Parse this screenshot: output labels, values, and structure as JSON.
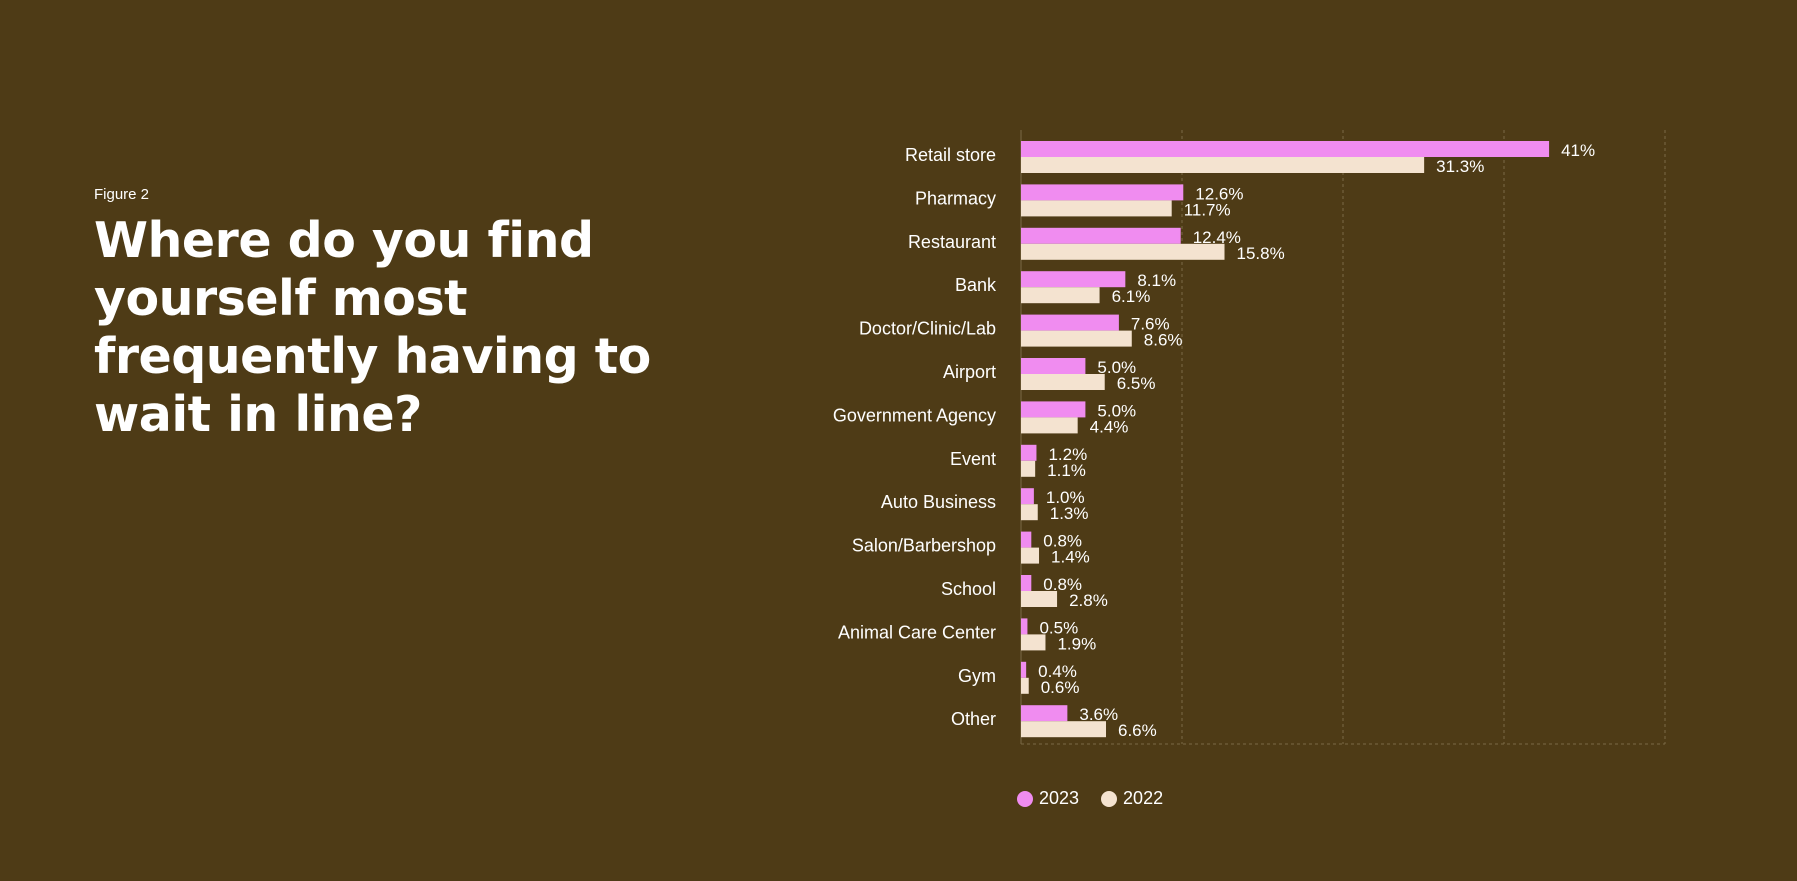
{
  "figure_label": "Figure 2",
  "headline": "Where do you find yourself most frequently having to wait in line?",
  "colors": {
    "background": "#4e3b16",
    "series_2023": "#f08cf0",
    "series_2022": "#f4e3d0",
    "grid": "#7a6a45",
    "text": "#ffffff"
  },
  "legend": [
    {
      "label": "2023",
      "color": "#f08cf0"
    },
    {
      "label": "2022",
      "color": "#f4e3d0"
    }
  ],
  "chart_data": {
    "type": "bar",
    "orientation": "horizontal",
    "categories": [
      "Retail store",
      "Pharmacy",
      "Restaurant",
      "Bank",
      "Doctor/Clinic/Lab",
      "Airport",
      "Government Agency",
      "Event",
      "Auto Business",
      "Salon/Barbershop",
      "School",
      "Animal Care Center",
      "Gym",
      "Other"
    ],
    "series": [
      {
        "name": "2023",
        "values": [
          41,
          12.6,
          12.4,
          8.1,
          7.6,
          5.0,
          5.0,
          1.2,
          1.0,
          0.8,
          0.8,
          0.5,
          0.4,
          3.6
        ],
        "labels": [
          "41%",
          "12.6%",
          "12.4%",
          "8.1%",
          "7.6%",
          "5.0%",
          "5.0%",
          "1.2%",
          "1.0%",
          "0.8%",
          "0.8%",
          "0.5%",
          "0.4%",
          "3.6%"
        ]
      },
      {
        "name": "2022",
        "values": [
          31.3,
          11.7,
          15.8,
          6.1,
          8.6,
          6.5,
          4.4,
          1.1,
          1.3,
          1.4,
          2.8,
          1.9,
          0.6,
          6.6
        ],
        "labels": [
          "31.3%",
          "11.7%",
          "15.8%",
          "6.1%",
          "8.6%",
          "6.5%",
          "4.4%",
          "1.1%",
          "1.3%",
          "1.4%",
          "2.8%",
          "1.9%",
          "0.6%",
          "6.6%"
        ]
      }
    ],
    "xlim": [
      0,
      50
    ],
    "grid": true,
    "grid_style": "dashed vertical",
    "legend_position": "bottom"
  }
}
